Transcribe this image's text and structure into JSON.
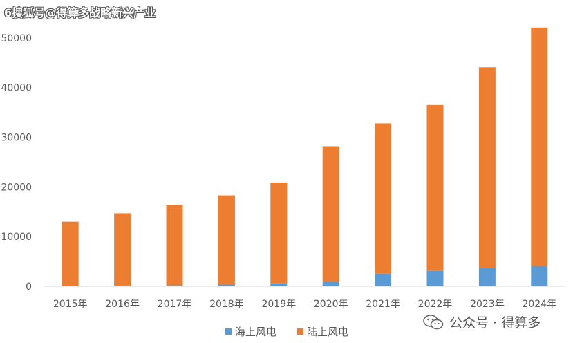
{
  "watermark": "6搜狐号@得算多战略新兴产业",
  "wechat": {
    "label": "公众号 · 得算多"
  },
  "chart_data": {
    "type": "bar",
    "stacked": true,
    "categories": [
      "2015年",
      "2016年",
      "2017年",
      "2018年",
      "2019年",
      "2020年",
      "2021年",
      "2022年",
      "2023年",
      "2024年"
    ],
    "series": [
      {
        "name": "海上风电",
        "color": "#5b9bd5",
        "values": [
          100,
          150,
          200,
          350,
          600,
          900,
          2600,
          3100,
          3700,
          4100
        ]
      },
      {
        "name": "陆上风电",
        "color": "#ed7d31",
        "values": [
          12900,
          14550,
          16200,
          17950,
          20300,
          27300,
          30200,
          33400,
          40400,
          48000
        ]
      }
    ],
    "y_ticks": [
      "0",
      "10000",
      "20000",
      "30000",
      "40000",
      "50000"
    ],
    "ylim": [
      0,
      55000
    ],
    "grid": false,
    "legend": "bottom"
  }
}
